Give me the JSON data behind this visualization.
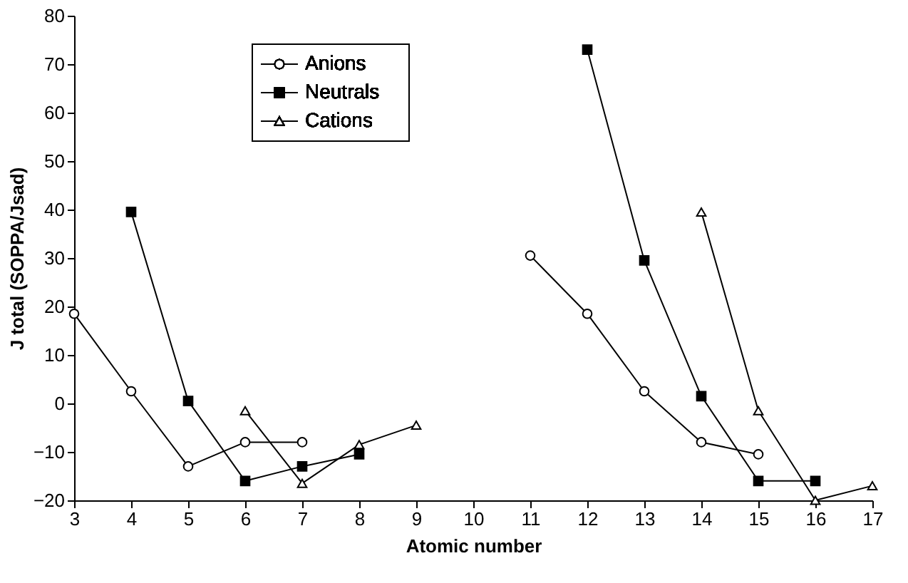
{
  "chart_data": {
    "type": "line",
    "xlabel": "Atomic number",
    "ylabel": "J total (SOPPA/Jsad)",
    "x": [
      3,
      4,
      5,
      6,
      7,
      8,
      9,
      10,
      11,
      12,
      13,
      14,
      15,
      16,
      17
    ],
    "series": [
      {
        "name": "Anions",
        "color": "#000000",
        "marker": "circle",
        "values": [
          18.5,
          2.5,
          -13,
          -8,
          -8,
          null,
          null,
          null,
          30.5,
          18.5,
          2.5,
          -8,
          -10.5,
          null,
          null
        ]
      },
      {
        "name": "Neutrals",
        "color": "#000000",
        "marker": "square",
        "values": [
          null,
          39.5,
          0.5,
          -16,
          -13,
          -10.5,
          null,
          null,
          null,
          73,
          29.5,
          1.5,
          -16,
          -16,
          null
        ]
      },
      {
        "name": "Cations",
        "color": "#000000",
        "marker": "triangle",
        "values": [
          null,
          null,
          null,
          -1.5,
          -16.5,
          -8.5,
          -4.5,
          null,
          null,
          null,
          null,
          39.5,
          -1.5,
          -20,
          -17
        ]
      }
    ],
    "xlim": [
      3,
      17
    ],
    "xticks": [
      3,
      4,
      5,
      6,
      7,
      8,
      9,
      10,
      11,
      12,
      13,
      14,
      15,
      16,
      17
    ],
    "ylim": [
      -20,
      80
    ],
    "yticks": [
      -20,
      -10,
      0,
      10,
      20,
      30,
      40,
      50,
      60,
      70,
      80
    ],
    "grid": false,
    "legend": "top left",
    "line_style": "solid"
  }
}
